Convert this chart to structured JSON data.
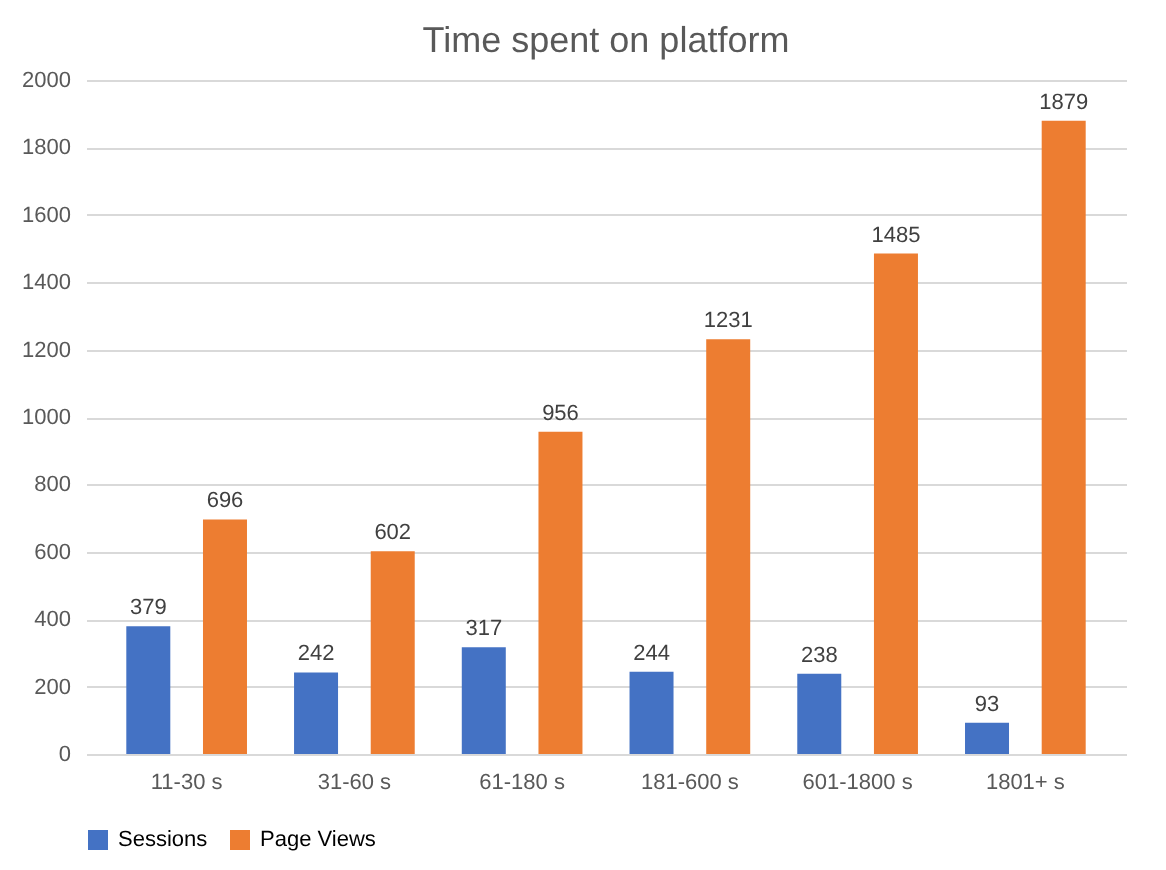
{
  "chart_data": {
    "type": "bar",
    "title": "Time spent on platform",
    "categories": [
      "11-30 s",
      "31-60 s",
      "61-180 s",
      "181-600 s",
      "601-1800 s",
      "1801+ s"
    ],
    "series": [
      {
        "name": "Sessions",
        "color": "#4472c4",
        "values": [
          379,
          242,
          317,
          244,
          238,
          93
        ]
      },
      {
        "name": "Page Views",
        "color": "#ed7d31",
        "values": [
          696,
          602,
          956,
          1231,
          1485,
          1879
        ]
      }
    ],
    "ylim": [
      0,
      2000
    ],
    "yticks": [
      0,
      200,
      400,
      600,
      800,
      1000,
      1200,
      1400,
      1600,
      1800,
      2000
    ],
    "grid": "y",
    "legend": "bottom",
    "data_labels": true
  }
}
